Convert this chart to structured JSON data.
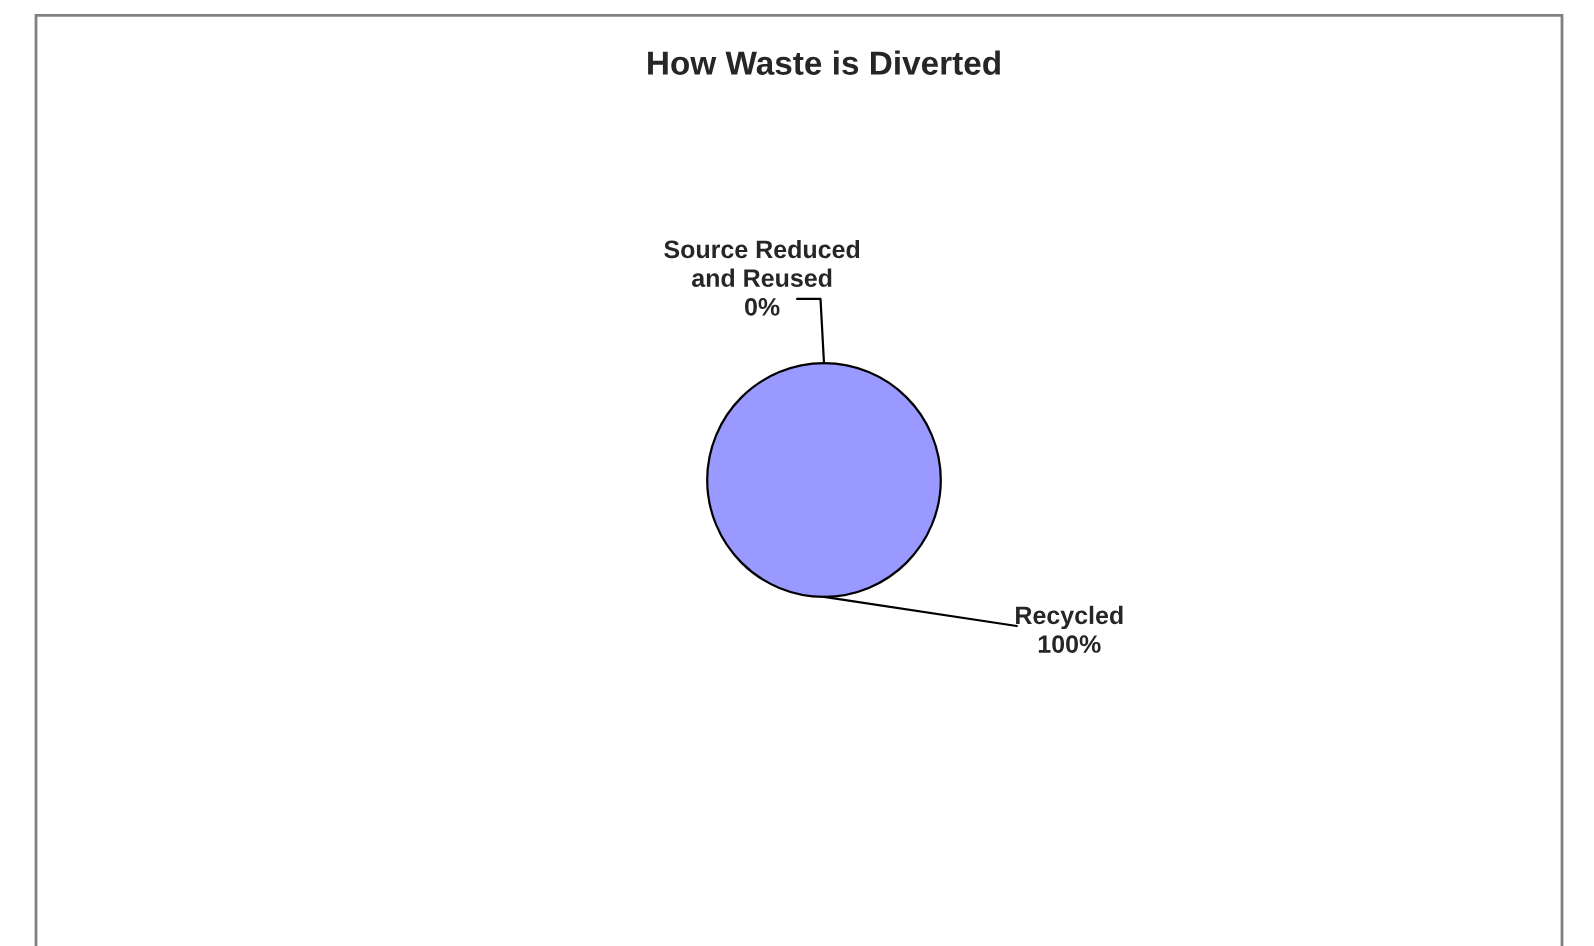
{
  "chart_data": {
    "type": "pie",
    "title": "How Waste is Diverted",
    "categories": [
      "Source Reduced and Reused",
      "Recycled"
    ],
    "values": [
      0,
      100
    ],
    "value_labels": [
      "0%",
      "100%"
    ],
    "colors": [
      "#993366",
      "#9999ff"
    ],
    "legend": false
  }
}
